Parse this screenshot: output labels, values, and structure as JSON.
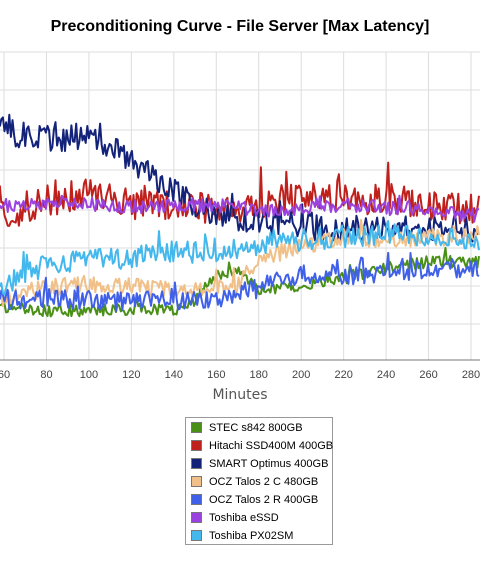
{
  "chart_data": {
    "type": "line",
    "title": "Preconditioning Curve - File Server [Max Latency]",
    "xlabel": "Minutes",
    "ylabel": "",
    "x_ticks": [
      60,
      80,
      100,
      120,
      140,
      160,
      180,
      200,
      220,
      240,
      260,
      280
    ],
    "xlim": [
      58,
      284
    ],
    "y_axis_labels_visible": false,
    "grid": true,
    "legend_position": "bottom",
    "series": [
      {
        "name": "STEC s842 800GB",
        "color": "#4a8f16",
        "points": [
          [
            60,
            308
          ],
          [
            80,
            311
          ],
          [
            100,
            310
          ],
          [
            120,
            309
          ],
          [
            140,
            310
          ],
          [
            150,
            300
          ],
          [
            160,
            275
          ],
          [
            170,
            268
          ],
          [
            180,
            290
          ],
          [
            200,
            285
          ],
          [
            220,
            278
          ],
          [
            240,
            268
          ],
          [
            260,
            262
          ],
          [
            280,
            262
          ]
        ],
        "noise": 6
      },
      {
        "name": "Hitachi SSD400M 400GB",
        "color": "#c0201c",
        "points": [
          [
            60,
            215
          ],
          [
            80,
            200
          ],
          [
            100,
            195
          ],
          [
            120,
            205
          ],
          [
            140,
            205
          ],
          [
            160,
            210
          ],
          [
            180,
            205
          ],
          [
            200,
            195
          ],
          [
            220,
            200
          ],
          [
            240,
            198
          ],
          [
            260,
            205
          ],
          [
            280,
            210
          ]
        ],
        "noise": 16
      },
      {
        "name": "SMART Optimus 400GB",
        "color": "#14237a",
        "points": [
          [
            60,
            130
          ],
          [
            80,
            140
          ],
          [
            100,
            135
          ],
          [
            120,
            160
          ],
          [
            140,
            190
          ],
          [
            160,
            215
          ],
          [
            180,
            220
          ],
          [
            200,
            225
          ],
          [
            220,
            230
          ],
          [
            240,
            228
          ],
          [
            260,
            228
          ],
          [
            280,
            230
          ]
        ],
        "noise": 14
      },
      {
        "name": "OCZ Talos 2 C 480GB",
        "color": "#f0c088",
        "points": [
          [
            60,
            298
          ],
          [
            80,
            288
          ],
          [
            100,
            285
          ],
          [
            120,
            285
          ],
          [
            140,
            290
          ],
          [
            160,
            290
          ],
          [
            170,
            285
          ],
          [
            180,
            260
          ],
          [
            200,
            245
          ],
          [
            220,
            240
          ],
          [
            240,
            240
          ],
          [
            260,
            238
          ],
          [
            280,
            235
          ]
        ],
        "noise": 9
      },
      {
        "name": "OCZ Talos 2 R 400GB",
        "color": "#4060e8",
        "points": [
          [
            60,
            300
          ],
          [
            80,
            298
          ],
          [
            100,
            300
          ],
          [
            120,
            302
          ],
          [
            140,
            300
          ],
          [
            160,
            300
          ],
          [
            180,
            288
          ],
          [
            200,
            275
          ],
          [
            220,
            275
          ],
          [
            240,
            272
          ],
          [
            260,
            270
          ],
          [
            280,
            268
          ]
        ],
        "noise": 10
      },
      {
        "name": "Toshiba eSSD",
        "color": "#9a42e0",
        "points": [
          [
            60,
            205
          ],
          [
            80,
            205
          ],
          [
            100,
            205
          ],
          [
            120,
            207
          ],
          [
            140,
            205
          ],
          [
            160,
            205
          ],
          [
            180,
            210
          ],
          [
            200,
            210
          ],
          [
            220,
            205
          ],
          [
            240,
            208
          ],
          [
            260,
            210
          ],
          [
            280,
            215
          ]
        ],
        "noise": 7
      },
      {
        "name": "Toshiba PX02SM",
        "color": "#44b8ec",
        "points": [
          [
            60,
            285
          ],
          [
            80,
            265
          ],
          [
            100,
            260
          ],
          [
            120,
            258
          ],
          [
            140,
            252
          ],
          [
            160,
            252
          ],
          [
            180,
            245
          ],
          [
            200,
            240
          ],
          [
            220,
            237
          ],
          [
            240,
            235
          ],
          [
            260,
            235
          ],
          [
            280,
            240
          ]
        ],
        "noise": 11
      }
    ]
  }
}
